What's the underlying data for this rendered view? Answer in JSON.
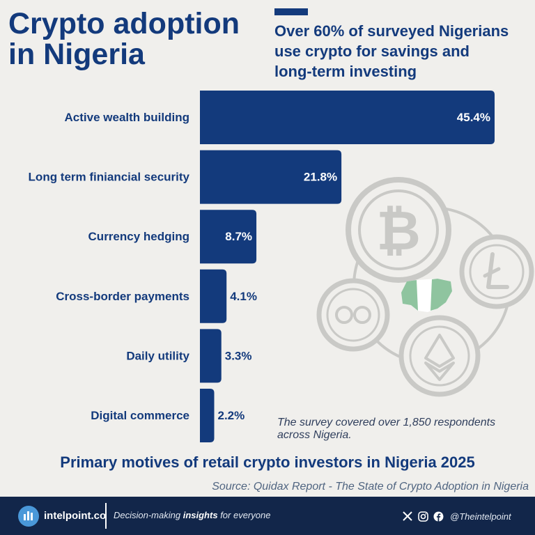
{
  "header": {
    "title_line1": "Crypto adoption",
    "title_line2": "in Nigeria",
    "subtitle_line1": "Over 60% of surveyed Nigerians",
    "subtitle_line2": "use crypto for savings and",
    "subtitle_line3": "long-term investing"
  },
  "chart_data": {
    "type": "bar",
    "orientation": "horizontal",
    "categories": [
      "Active wealth building",
      "Long term finiancial security",
      "Currency hedging",
      "Cross-border payments",
      "Daily utility",
      "Digital commerce"
    ],
    "values": [
      45.4,
      21.8,
      8.7,
      4.1,
      3.3,
      2.2
    ],
    "value_labels": [
      "45.4%",
      "21.8%",
      "8.7%",
      "4.1%",
      "3.3%",
      "2.2%"
    ],
    "title": "Primary motives of retail crypto investors in Nigeria 2025",
    "xlim": [
      0,
      45.4
    ],
    "grid": false,
    "bar_color": "#133a7c"
  },
  "note": {
    "line1": "The survey covered over 1,850 respondents",
    "line2": "across Nigeria."
  },
  "source": "Source: Quidax Report - The State of Crypto Adoption in Nigeria",
  "footer": {
    "brand": "intelpoint.co",
    "tagline_pre": "Decision-making",
    "tagline_bold": "insights",
    "tagline_post": "for everyone",
    "social_icons": [
      "x-icon",
      "instagram-icon",
      "facebook-icon"
    ],
    "handle": "@Theintelpoint"
  },
  "colors": {
    "primary": "#133a7c",
    "background": "#f0efec",
    "footer": "#12264a",
    "coin_outline": "#c9c9c6",
    "nigeria_green": "#8fc49f"
  }
}
